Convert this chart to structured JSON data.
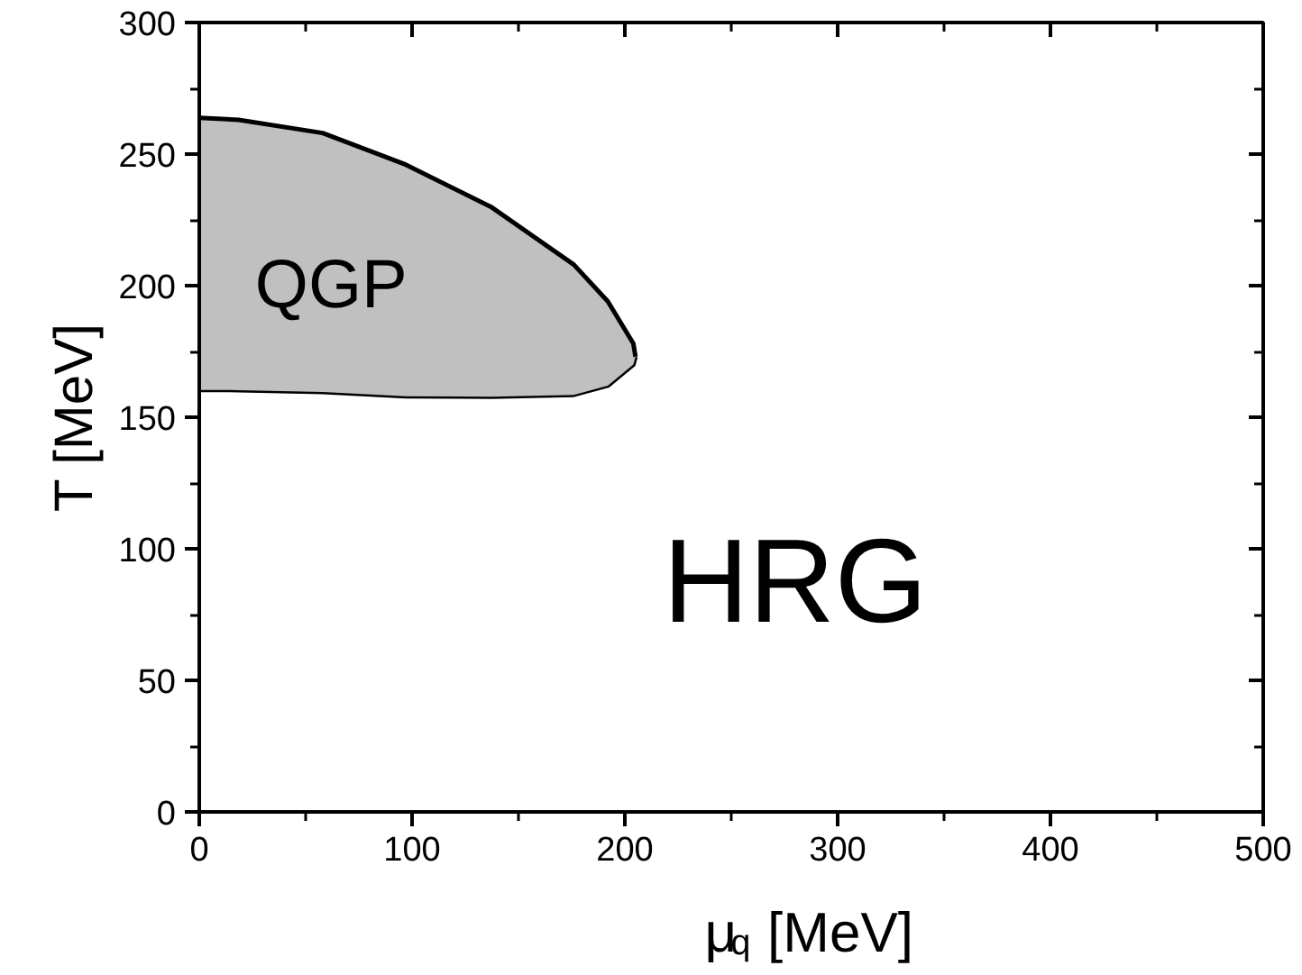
{
  "chart_data": {
    "type": "area",
    "xlabel": "μ$_{q}$ [MeV]",
    "ylabel": "T [MeV]",
    "x": [
      0,
      18.5,
      58,
      97,
      137,
      176,
      192,
      204,
      205
    ],
    "stacked": true,
    "series": [
      {
        "color": "#ffffff",
        "values": [
          160.4,
          160.3,
          159.6,
          158,
          157.8,
          158.5,
          162,
          170,
          173
        ]
      },
      {
        "color": "#c0c0c0",
        "values": [
          103.4,
          102.7,
          98.4,
          88,
          72.2,
          49.5,
          32,
          8,
          0
        ]
      }
    ],
    "xlim": [
      0,
      500
    ],
    "ylim": [
      0,
      300
    ],
    "xticks": [
      0,
      100,
      200,
      300,
      400,
      500
    ],
    "yticks": [
      0,
      50,
      100,
      150,
      200,
      250,
      300
    ],
    "annotations": [
      "QGP",
      "HRG"
    ],
    "grid": false
  }
}
